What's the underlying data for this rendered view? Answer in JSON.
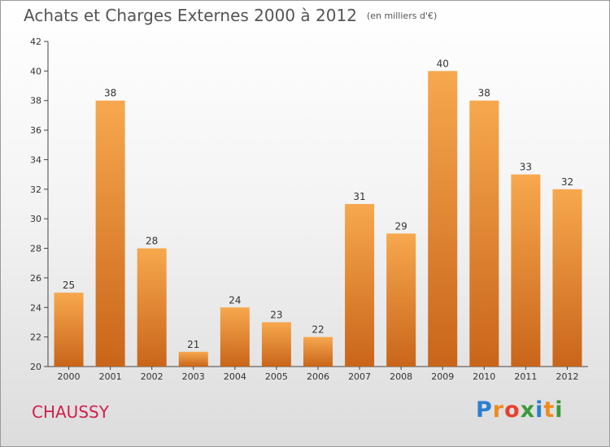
{
  "header": {
    "title": "Achats et Charges Externes 2000 à 2012",
    "unit": "(en milliers d'€)"
  },
  "footer": {
    "place": "CHAUSSY",
    "logo": "Proxiti",
    "logo_colors": [
      "#2b7fd0",
      "#f08a1e",
      "#e8402e",
      "#3a9a3a",
      "#2b7fd0",
      "#f08a1e",
      "#3a9a3a"
    ]
  },
  "colors": {
    "bar_light": "#f7a84e",
    "bar_dark": "#c9651a",
    "axis": "#444444",
    "label": "#333333"
  },
  "chart_data": {
    "type": "bar",
    "title": "Achats et Charges Externes 2000 à 2012",
    "xlabel": "",
    "ylabel": "",
    "categories": [
      "2000",
      "2001",
      "2002",
      "2003",
      "2004",
      "2005",
      "2006",
      "2007",
      "2008",
      "2009",
      "2010",
      "2011",
      "2012"
    ],
    "values": [
      25,
      38,
      28,
      21,
      24,
      23,
      22,
      31,
      29,
      40,
      38,
      33,
      32
    ],
    "ylim": [
      20,
      42
    ],
    "yticks": [
      20,
      22,
      24,
      26,
      28,
      30,
      32,
      34,
      36,
      38,
      40,
      42
    ],
    "grid": false,
    "legend": "none"
  }
}
